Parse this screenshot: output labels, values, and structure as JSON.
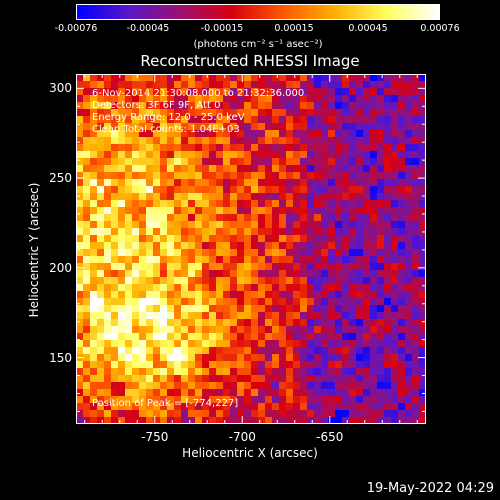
{
  "colorbar": {
    "tick_labels": [
      "-0.00076",
      "-0.00045",
      "-0.00015",
      "0.00015",
      "0.00045",
      "0.00076"
    ],
    "tick_values": [
      -0.00076,
      -0.00045,
      -0.00015,
      0.00015,
      0.00045,
      0.00076
    ],
    "units_label": "(photons cm⁻² s⁻¹ asec⁻²)",
    "range": [
      -0.00076,
      0.00076
    ],
    "colors": [
      "#0000ff",
      "#5a18c8",
      "#9a1070",
      "#d80010",
      "#ff5a00",
      "#ffb000",
      "#ffff60",
      "#ffffff"
    ]
  },
  "annotations": {
    "time_range": "6-Nov-2014 21:30:08.000 to 21:32:36.000",
    "detectors": "Detectors: 3F 6F 9F, Att 0",
    "energy_range": "Energy Range: 12.0 - 25.0 keV",
    "method_counts": "Clean    Total counts: 1.04E+03",
    "peak": "Position of Peak = [-774,227]"
  },
  "footer_timestamp": "19-May-2022 04:29",
  "chart_data": {
    "type": "heatmap",
    "title": "Reconstructed RHESSI Image",
    "xlabel": "Heliocentric X (arcsec)",
    "ylabel": "Heliocentric Y (arcsec)",
    "xlim": [
      -795,
      -595
    ],
    "ylim": [
      113,
      308
    ],
    "x_ticks": [
      -750,
      -700,
      -650
    ],
    "x_tick_labels": [
      "-750",
      "-700",
      "-650"
    ],
    "y_ticks": [
      150,
      200,
      250,
      300
    ],
    "y_tick_labels": [
      "150",
      "200",
      "250",
      "300"
    ],
    "peak_position": [
      -774,
      227
    ],
    "value_range": [
      -0.00076,
      0.00076
    ],
    "grid": false
  }
}
